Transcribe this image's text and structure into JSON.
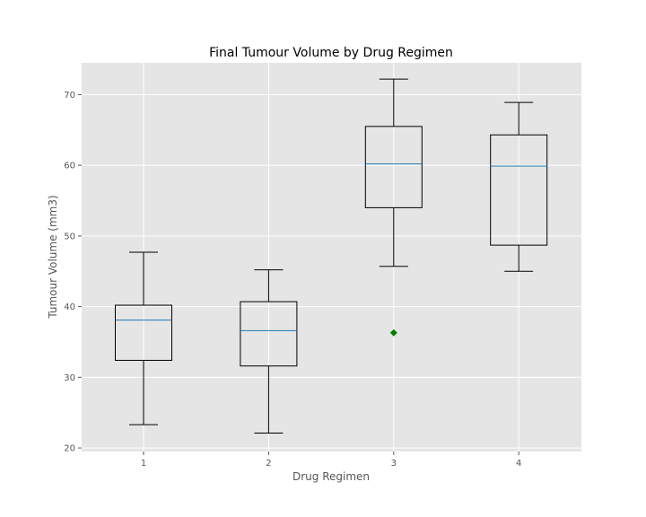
{
  "chart_data": {
    "type": "box",
    "title": "Final Tumour Volume by Drug Regimen",
    "xlabel": "Drug Regimen",
    "ylabel": "Tumour Volume (mm3)",
    "categories": [
      "1",
      "2",
      "3",
      "4"
    ],
    "ylim": [
      19.5,
      74.5
    ],
    "yticks": [
      20,
      30,
      40,
      50,
      60,
      70
    ],
    "grid": true,
    "boxes": [
      {
        "category": "1",
        "whisker_low": 23.3,
        "q1": 32.4,
        "median": 38.1,
        "q3": 40.2,
        "whisker_high": 47.7,
        "outliers": []
      },
      {
        "category": "2",
        "whisker_low": 22.1,
        "q1": 31.6,
        "median": 36.6,
        "q3": 40.7,
        "whisker_high": 45.2,
        "outliers": []
      },
      {
        "category": "3",
        "whisker_low": 45.7,
        "q1": 54.0,
        "median": 60.2,
        "q3": 65.5,
        "whisker_high": 72.2,
        "outliers": [
          36.3
        ]
      },
      {
        "category": "4",
        "whisker_low": 45.0,
        "q1": 48.7,
        "median": 59.9,
        "q3": 64.3,
        "whisker_high": 68.9,
        "outliers": []
      }
    ],
    "colors": {
      "background": "#e5e5e5",
      "grid": "#ffffff",
      "box": "#000000",
      "median": "#1f77b4",
      "outlier": "#008000"
    }
  }
}
